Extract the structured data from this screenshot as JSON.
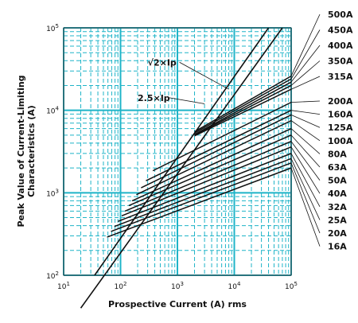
{
  "chart_data": {
    "type": "line",
    "title": "",
    "xlabel": "Prospective Current (A) rms",
    "ylabel_line1": "Peak Value of Current-Limiting",
    "ylabel_line2": "Characteristics (A)",
    "x_scale": "log",
    "y_scale": "log",
    "xlim": [
      10,
      100000
    ],
    "ylim": [
      100,
      100000
    ],
    "x_ticks": [
      {
        "base": "10",
        "exp": "1",
        "value": 10
      },
      {
        "base": "10",
        "exp": "2",
        "value": 100
      },
      {
        "base": "10",
        "exp": "3",
        "value": 1000
      },
      {
        "base": "10",
        "exp": "4",
        "value": 10000
      },
      {
        "base": "10",
        "exp": "5",
        "value": 100000
      }
    ],
    "y_ticks": [
      {
        "base": "10",
        "exp": "2",
        "value": 100
      },
      {
        "base": "10",
        "exp": "3",
        "value": 1000
      },
      {
        "base": "10",
        "exp": "4",
        "value": 10000
      },
      {
        "base": "10",
        "exp": "5",
        "value": 100000
      }
    ],
    "grid": true,
    "colors": {
      "grid": "#1fb4c8",
      "line": "#111111",
      "axis": "#333333"
    },
    "reference_lines": [
      {
        "name": "√2×Ip",
        "points": [
          [
            20,
            40
          ],
          [
            70000,
            100000
          ]
        ]
      },
      {
        "name": "2.5×Ip",
        "points": [
          [
            35,
            100
          ],
          [
            40000,
            100000
          ]
        ]
      }
    ],
    "annotations": [
      {
        "text": "√2×Ip",
        "x": 300,
        "y": 35000,
        "arrow_to": [
          8000,
          18000
        ]
      },
      {
        "text": "2.5×Ip",
        "x": 200,
        "y": 13000,
        "arrow_to": [
          3000,
          12000
        ]
      }
    ],
    "series": [
      {
        "name": "500A",
        "points": [
          [
            2000,
            5500
          ],
          [
            100000,
            26000
          ]
        ]
      },
      {
        "name": "450A",
        "points": [
          [
            2000,
            5300
          ],
          [
            100000,
            24000
          ]
        ]
      },
      {
        "name": "400A",
        "points": [
          [
            2000,
            5100
          ],
          [
            100000,
            22000
          ]
        ]
      },
      {
        "name": "350A",
        "points": [
          [
            2000,
            5000
          ],
          [
            100000,
            20000
          ]
        ]
      },
      {
        "name": "315A",
        "points": [
          [
            2000,
            4900
          ],
          [
            100000,
            18000
          ]
        ]
      },
      {
        "name": "200A",
        "points": [
          [
            370,
            1850
          ],
          [
            100000,
            12500
          ]
        ]
      },
      {
        "name": "160A",
        "points": [
          [
            280,
            1400
          ],
          [
            100000,
            10000
          ]
        ]
      },
      {
        "name": "125A",
        "points": [
          [
            230,
            1150
          ],
          [
            100000,
            8800
          ]
        ]
      },
      {
        "name": "100A",
        "points": [
          [
            190,
            950
          ],
          [
            100000,
            7500
          ]
        ]
      },
      {
        "name": "80A",
        "points": [
          [
            160,
            800
          ],
          [
            100000,
            6000
          ]
        ]
      },
      {
        "name": "63A",
        "points": [
          [
            140,
            700
          ],
          [
            100000,
            5000
          ]
        ]
      },
      {
        "name": "50A",
        "points": [
          [
            120,
            600
          ],
          [
            100000,
            4200
          ]
        ]
      },
      {
        "name": "40A",
        "points": [
          [
            105,
            525
          ],
          [
            100000,
            3600
          ]
        ]
      },
      {
        "name": "32A",
        "points": [
          [
            90,
            450
          ],
          [
            100000,
            3000
          ]
        ]
      },
      {
        "name": "25A",
        "points": [
          [
            78,
            390
          ],
          [
            100000,
            2600
          ]
        ]
      },
      {
        "name": "20A",
        "points": [
          [
            68,
            340
          ],
          [
            100000,
            2300
          ]
        ]
      },
      {
        "name": "16A",
        "points": [
          [
            58,
            290
          ],
          [
            100000,
            2000
          ]
        ]
      }
    ]
  }
}
